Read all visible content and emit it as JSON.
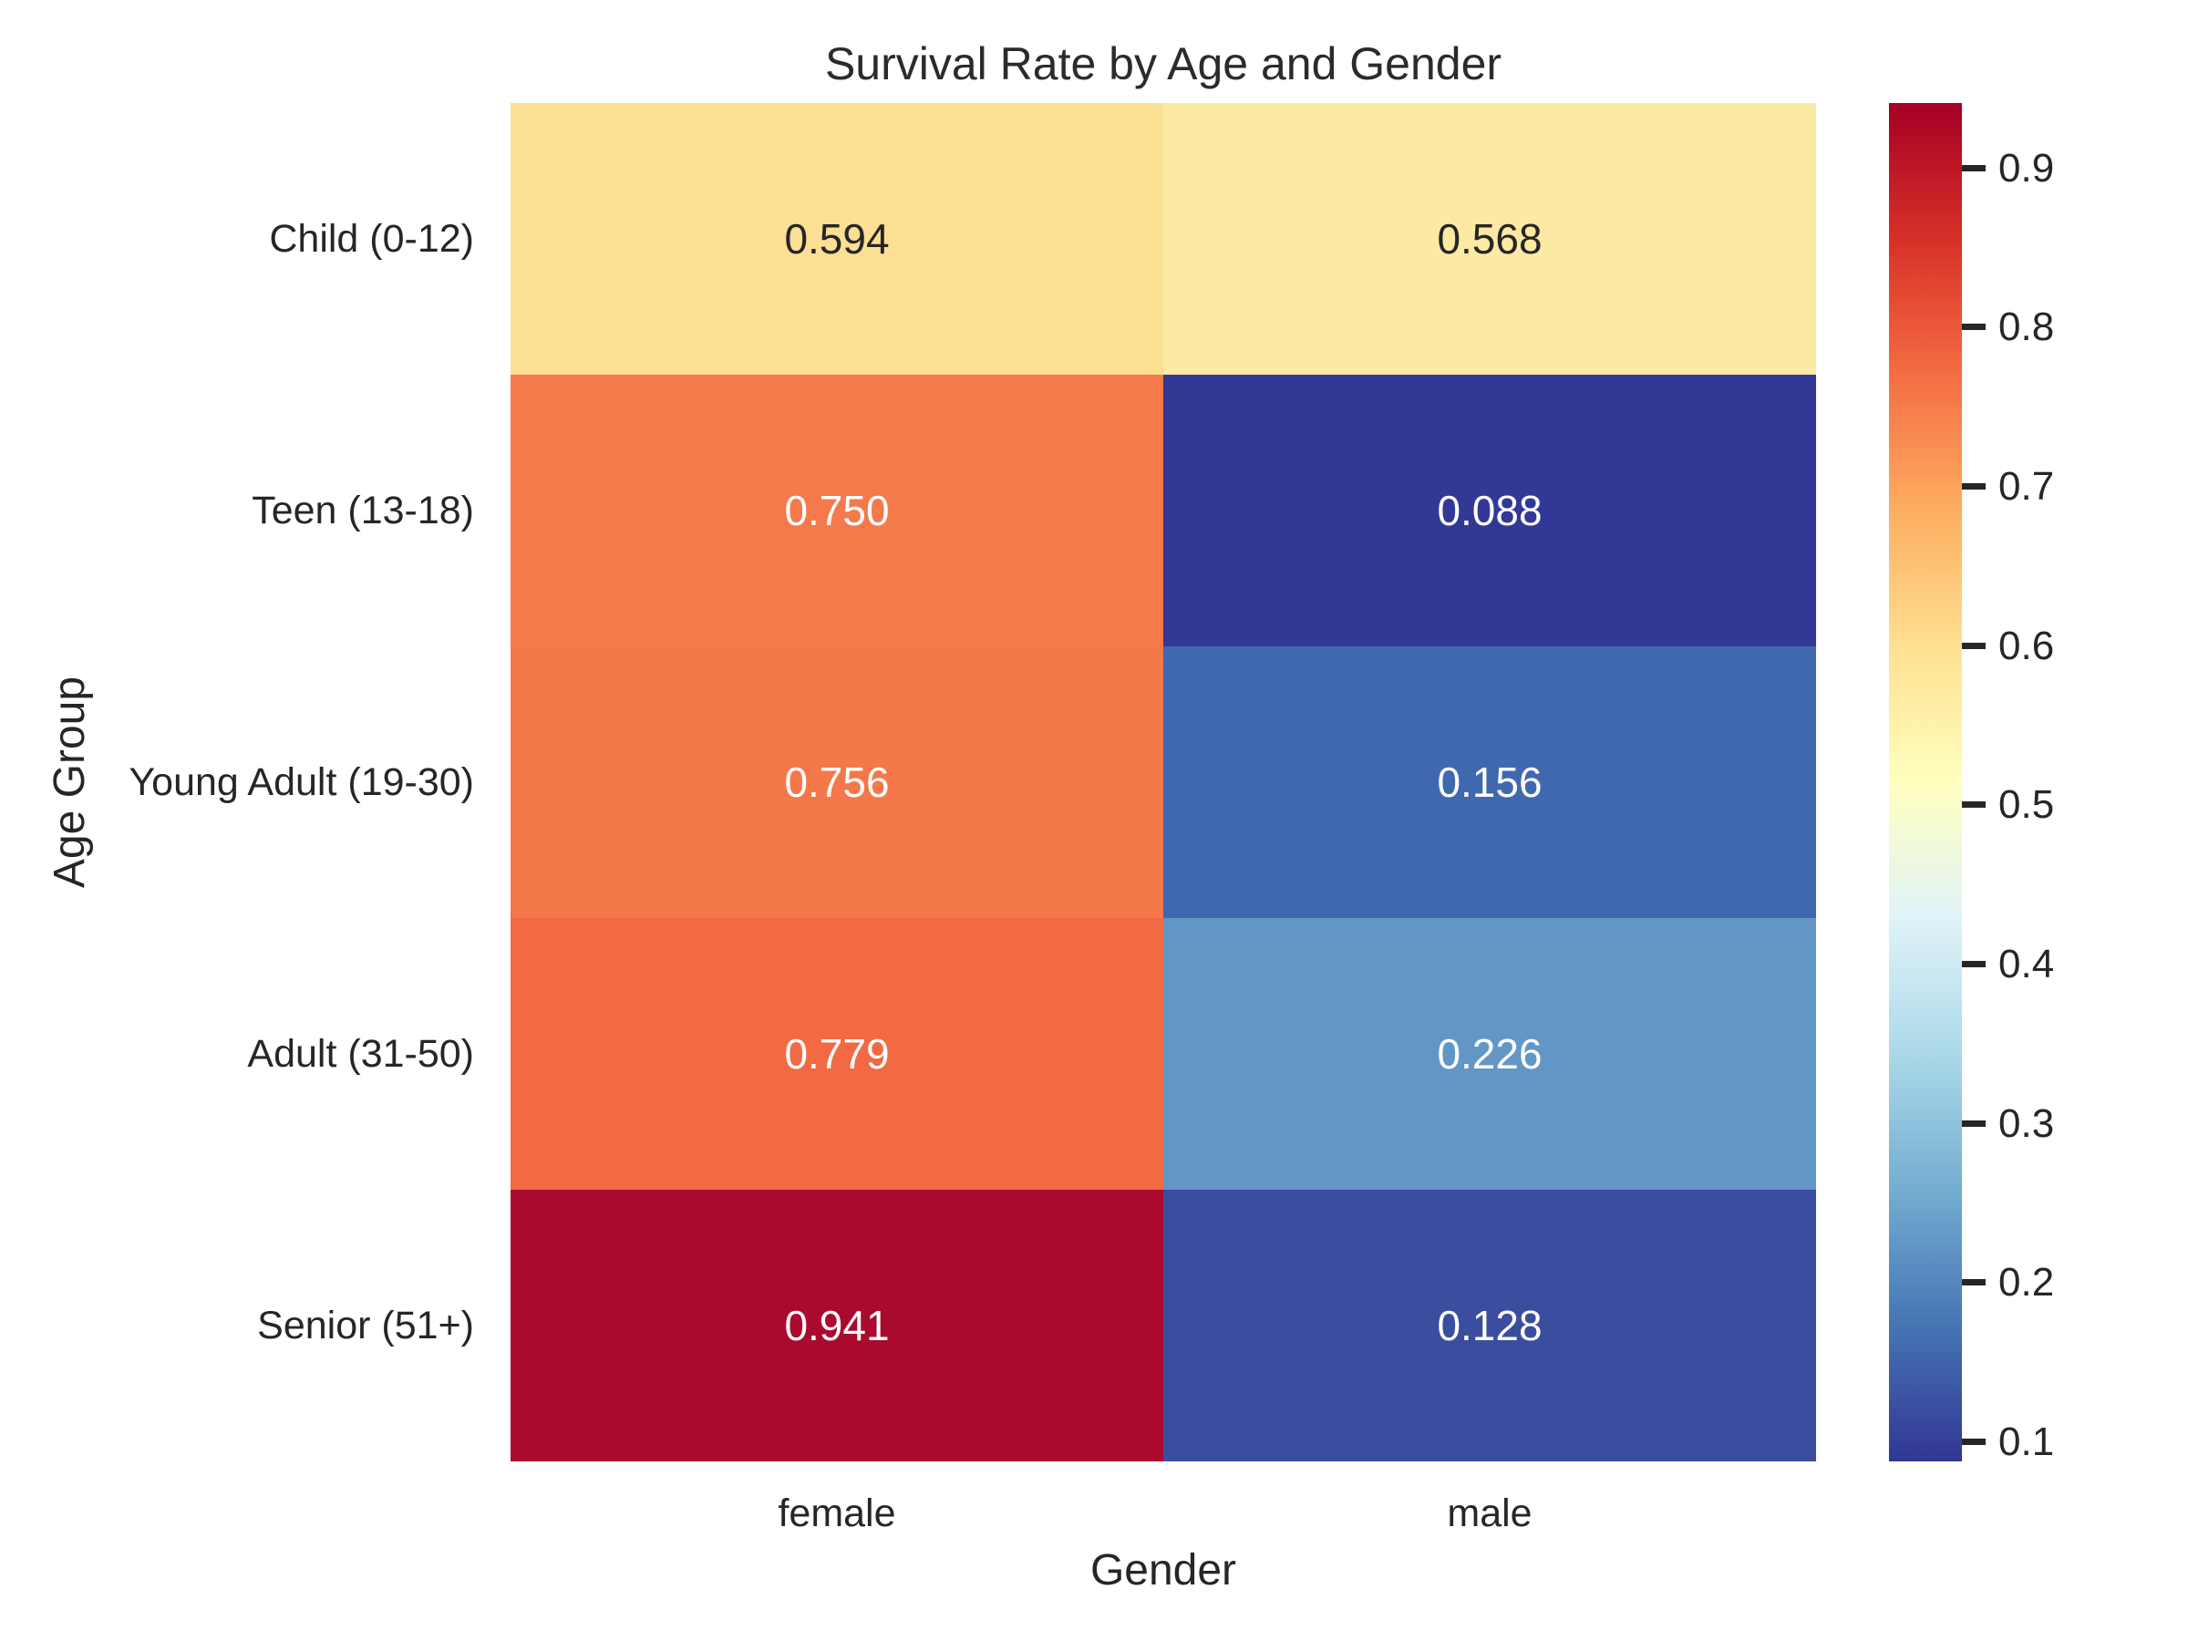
{
  "chart_data": {
    "type": "heatmap",
    "title": "Survival Rate by Age and Gender",
    "xlabel": "Gender",
    "ylabel": "Age Group",
    "columns": [
      "female",
      "male"
    ],
    "rows": [
      "Child (0-12)",
      "Teen (13-18)",
      "Young Adult (19-30)",
      "Adult (31-50)",
      "Senior (51+)"
    ],
    "values": [
      [
        0.594,
        0.568
      ],
      [
        0.75,
        0.088
      ],
      [
        0.756,
        0.156
      ],
      [
        0.779,
        0.226
      ],
      [
        0.941,
        0.128
      ]
    ],
    "value_labels": [
      [
        "0.594",
        "0.568"
      ],
      [
        "0.750",
        "0.088"
      ],
      [
        "0.756",
        "0.156"
      ],
      [
        "0.779",
        "0.226"
      ],
      [
        "0.941",
        "0.128"
      ]
    ],
    "cell_colors": [
      [
        "#fbdf93",
        "#fce9a3"
      ],
      [
        "#f47a4b",
        "#323896"
      ],
      [
        "#f4784a",
        "#4068ae"
      ],
      [
        "#f16a44",
        "#6297c5"
      ],
      [
        "#ab0a2f",
        "#3b4d9f"
      ]
    ],
    "cell_text_colors": [
      [
        "#262626",
        "#262626"
      ],
      [
        "#ffffff",
        "#ffffff"
      ],
      [
        "#ffffff",
        "#ffffff"
      ],
      [
        "#ffffff",
        "#ffffff"
      ],
      [
        "#ffffff",
        "#ffffff"
      ]
    ],
    "colormap": "RdYlBu_r",
    "vmin": 0.088,
    "vmax": 0.941,
    "grid": false,
    "legend_position": "right-colorbar",
    "colorbar_ticks": [
      0.9,
      0.8,
      0.7,
      0.6,
      0.5,
      0.4,
      0.3,
      0.2,
      0.1
    ],
    "colorbar_tick_labels": [
      "0.9",
      "0.8",
      "0.7",
      "0.6",
      "0.5",
      "0.4",
      "0.3",
      "0.2",
      "0.1"
    ],
    "colorbar_gradient": [
      {
        "pos": 0.0,
        "color": "#313695"
      },
      {
        "pos": 0.1,
        "color": "#4575b4"
      },
      {
        "pos": 0.2,
        "color": "#74add1"
      },
      {
        "pos": 0.3,
        "color": "#abd9e9"
      },
      {
        "pos": 0.4,
        "color": "#e0f3f8"
      },
      {
        "pos": 0.5,
        "color": "#ffffbf"
      },
      {
        "pos": 0.6,
        "color": "#fee090"
      },
      {
        "pos": 0.7,
        "color": "#fdae61"
      },
      {
        "pos": 0.8,
        "color": "#f46d43"
      },
      {
        "pos": 0.9,
        "color": "#d73027"
      },
      {
        "pos": 1.0,
        "color": "#a50026"
      }
    ],
    "background": "#ffffff",
    "text_color": "#262626"
  }
}
